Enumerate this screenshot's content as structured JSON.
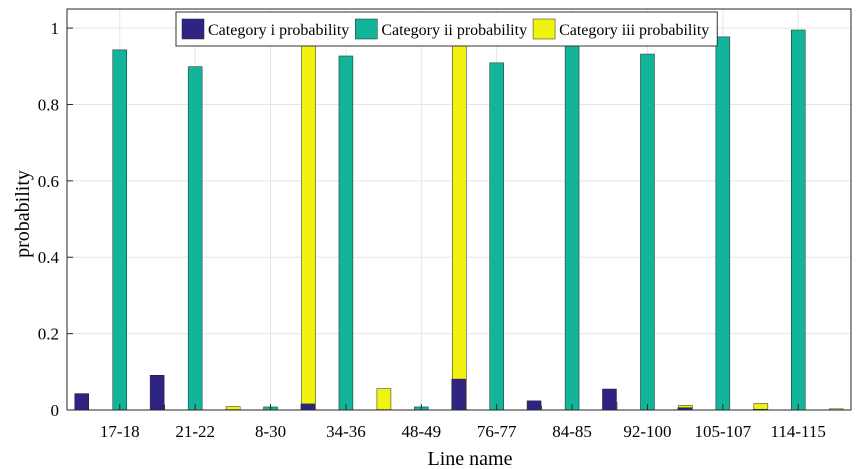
{
  "chart_data": {
    "type": "bar",
    "title": "",
    "xlabel": "Line name",
    "ylabel": "probability",
    "ylim": [
      0,
      1.05
    ],
    "yticks": [
      0,
      0.2,
      0.4,
      0.6,
      0.8,
      1
    ],
    "ytick_labels": [
      "0",
      "0.2",
      "0.4",
      "0.6",
      "0.8",
      "1"
    ],
    "grid": true,
    "legend_position": "top",
    "categories": [
      "17-18",
      "21-22",
      "8-30",
      "34-36",
      "48-49",
      "76-77",
      "84-85",
      "92-100",
      "105-107",
      "114-115"
    ],
    "series": [
      {
        "name": "Category i probability",
        "color": "#2e2483",
        "values": [
          0.043,
          0.091,
          0.001,
          0.016,
          0.001,
          0.081,
          0.024,
          0.055,
          0.006,
          0.002
        ]
      },
      {
        "name": "Category ii probability",
        "color": "#13b59a",
        "values": [
          0.943,
          0.899,
          0.008,
          0.927,
          0.008,
          0.909,
          0.955,
          0.932,
          0.977,
          0.995
        ]
      },
      {
        "name": "Category iii probability",
        "color": "#f2f20f",
        "values": [
          0.013,
          0.009,
          0.99,
          0.056,
          0.99,
          0.01,
          0.02,
          0.012,
          0.017,
          0.003
        ]
      }
    ]
  }
}
